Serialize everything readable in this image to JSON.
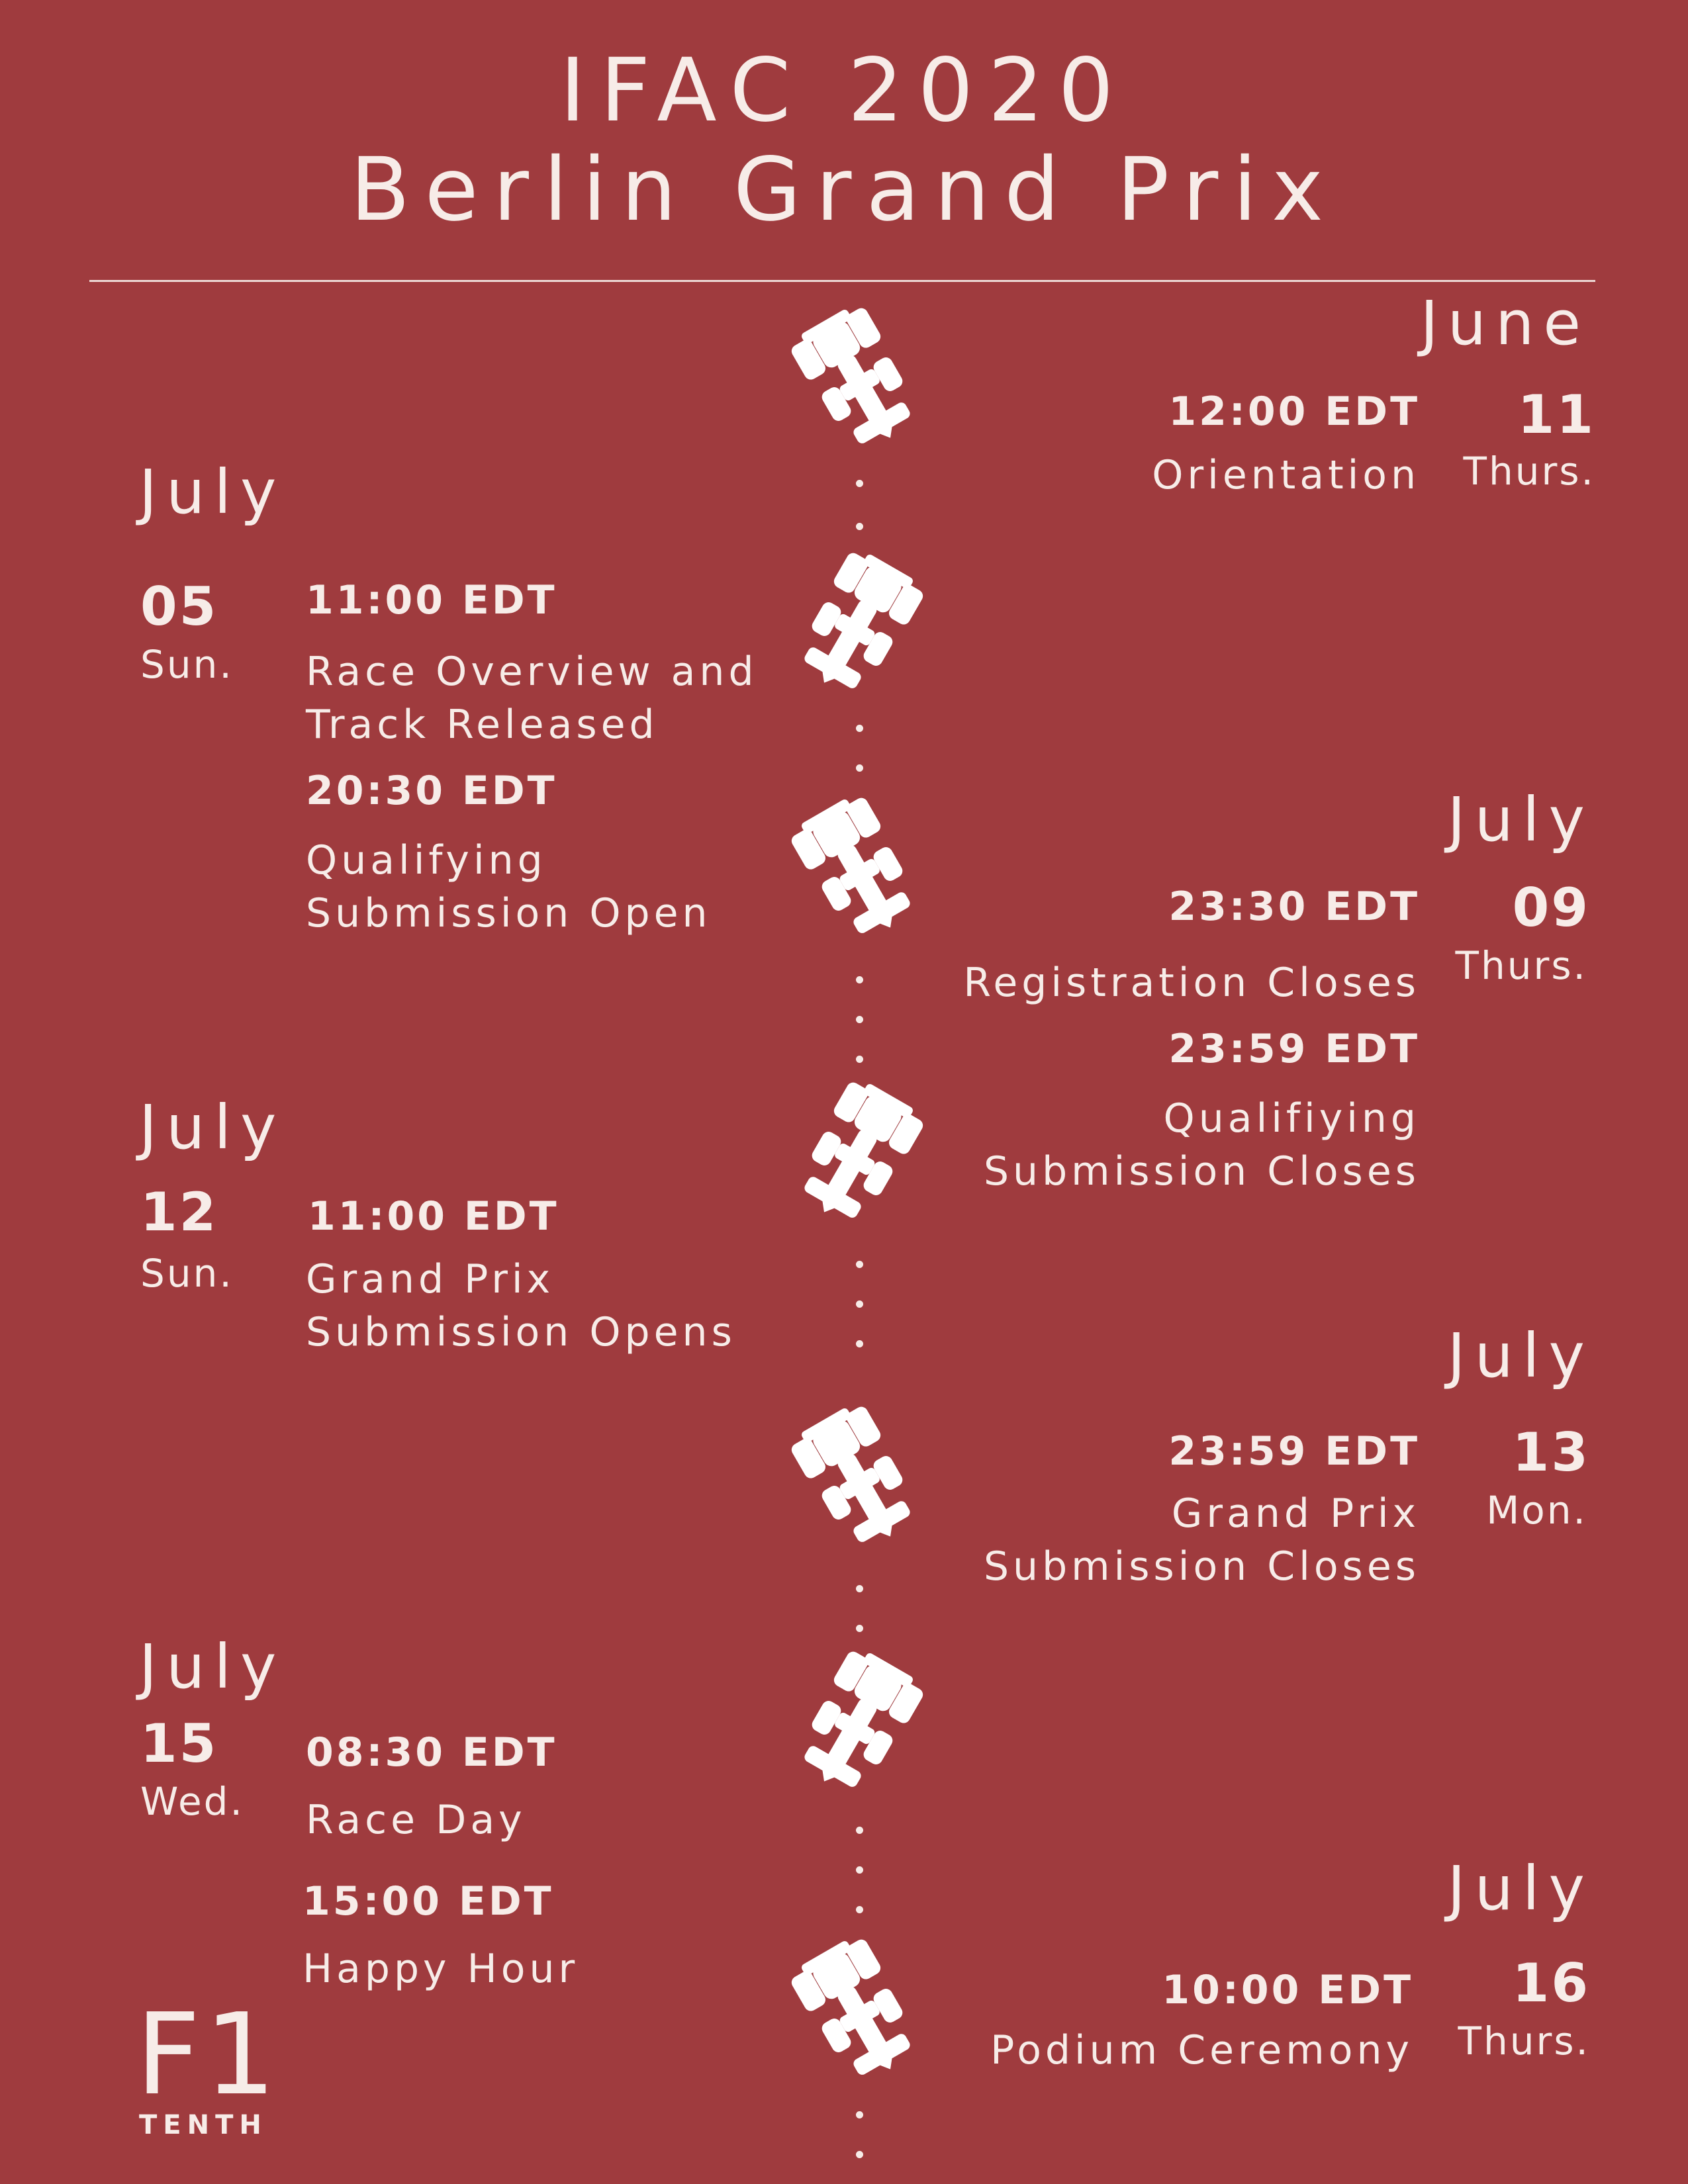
{
  "header": {
    "title_line1": "IFAC 2020",
    "title_line2": "Berlin Grand Prix"
  },
  "events": [
    {
      "month": "June",
      "day": "11",
      "dow": "Thurs.",
      "time": "12:00 EDT",
      "desc": [
        "Orientation"
      ]
    },
    {
      "month": "July",
      "day": "05",
      "dow": "Sun.",
      "time": "11:00 EDT",
      "desc": [
        "Race Overview and",
        "Track Released"
      ]
    },
    {
      "time": "20:30 EDT",
      "desc": [
        "Qualifying",
        "Submission Open"
      ]
    },
    {
      "month": "July",
      "day": "09",
      "dow": "Thurs.",
      "time": "23:30 EDT",
      "desc": [
        "Registration Closes"
      ]
    },
    {
      "time": "23:59 EDT",
      "desc": [
        "Qualifiying",
        "Submission Closes"
      ]
    },
    {
      "month": "July",
      "day": "12",
      "dow": "Sun.",
      "time": "11:00 EDT",
      "desc": [
        "Grand Prix",
        "Submission Opens"
      ]
    },
    {
      "month": "July",
      "day": "13",
      "dow": "Mon.",
      "time": "23:59 EDT",
      "desc": [
        "Grand Prix",
        "Submission Closes"
      ]
    },
    {
      "month": "July",
      "day": "15",
      "dow": "Wed.",
      "time": "08:30 EDT",
      "desc": [
        "Race Day"
      ]
    },
    {
      "time": "15:00 EDT",
      "desc": [
        "Happy Hour"
      ]
    },
    {
      "month": "July",
      "day": "16",
      "dow": "Thurs.",
      "time": "10:00 EDT",
      "desc": [
        "Podium Ceremony"
      ]
    }
  ],
  "logo": {
    "mark": "F1",
    "sub": "TENTH"
  },
  "icons": {
    "timeline_marker": "race-car-icon"
  },
  "colors": {
    "background": "#9f3b3e",
    "foreground": "#f7ece8"
  }
}
